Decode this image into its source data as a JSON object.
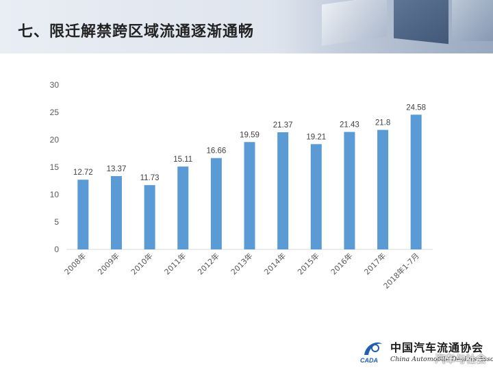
{
  "header": {
    "title": "七、限迁解禁跨区域流通逐渐通畅"
  },
  "chart_data": {
    "type": "bar",
    "categories": [
      "2008年",
      "2009年",
      "2010年",
      "2011年",
      "2012年",
      "2013年",
      "2014年",
      "2015年",
      "2016年",
      "2017年",
      "2018年1-7月"
    ],
    "values": [
      12.72,
      13.37,
      11.73,
      15.11,
      16.66,
      19.59,
      21.37,
      19.21,
      21.43,
      21.8,
      24.58
    ],
    "value_labels": [
      "12.72",
      "13.37",
      "11.73",
      "15.11",
      "16.66",
      "19.59",
      "21.37",
      "19.21",
      "21.43",
      "21.8",
      "24.58"
    ],
    "yticks": [
      "0",
      "5",
      "10",
      "15",
      "20",
      "25",
      "30"
    ],
    "ylim": [
      0,
      30
    ],
    "grid": false,
    "colors": {
      "bar": "#5b9bd5",
      "axis": "#d9d9d9",
      "tick_text": "#595959",
      "label_text": "#404040"
    }
  },
  "logo": {
    "icon": "cada-logo-icon",
    "mark_text": "CADA",
    "name_cn": "中国汽车流通协会",
    "name_en": "China Automobile Dealers Association"
  },
  "watermark": {
    "text": "汽车与社会"
  }
}
